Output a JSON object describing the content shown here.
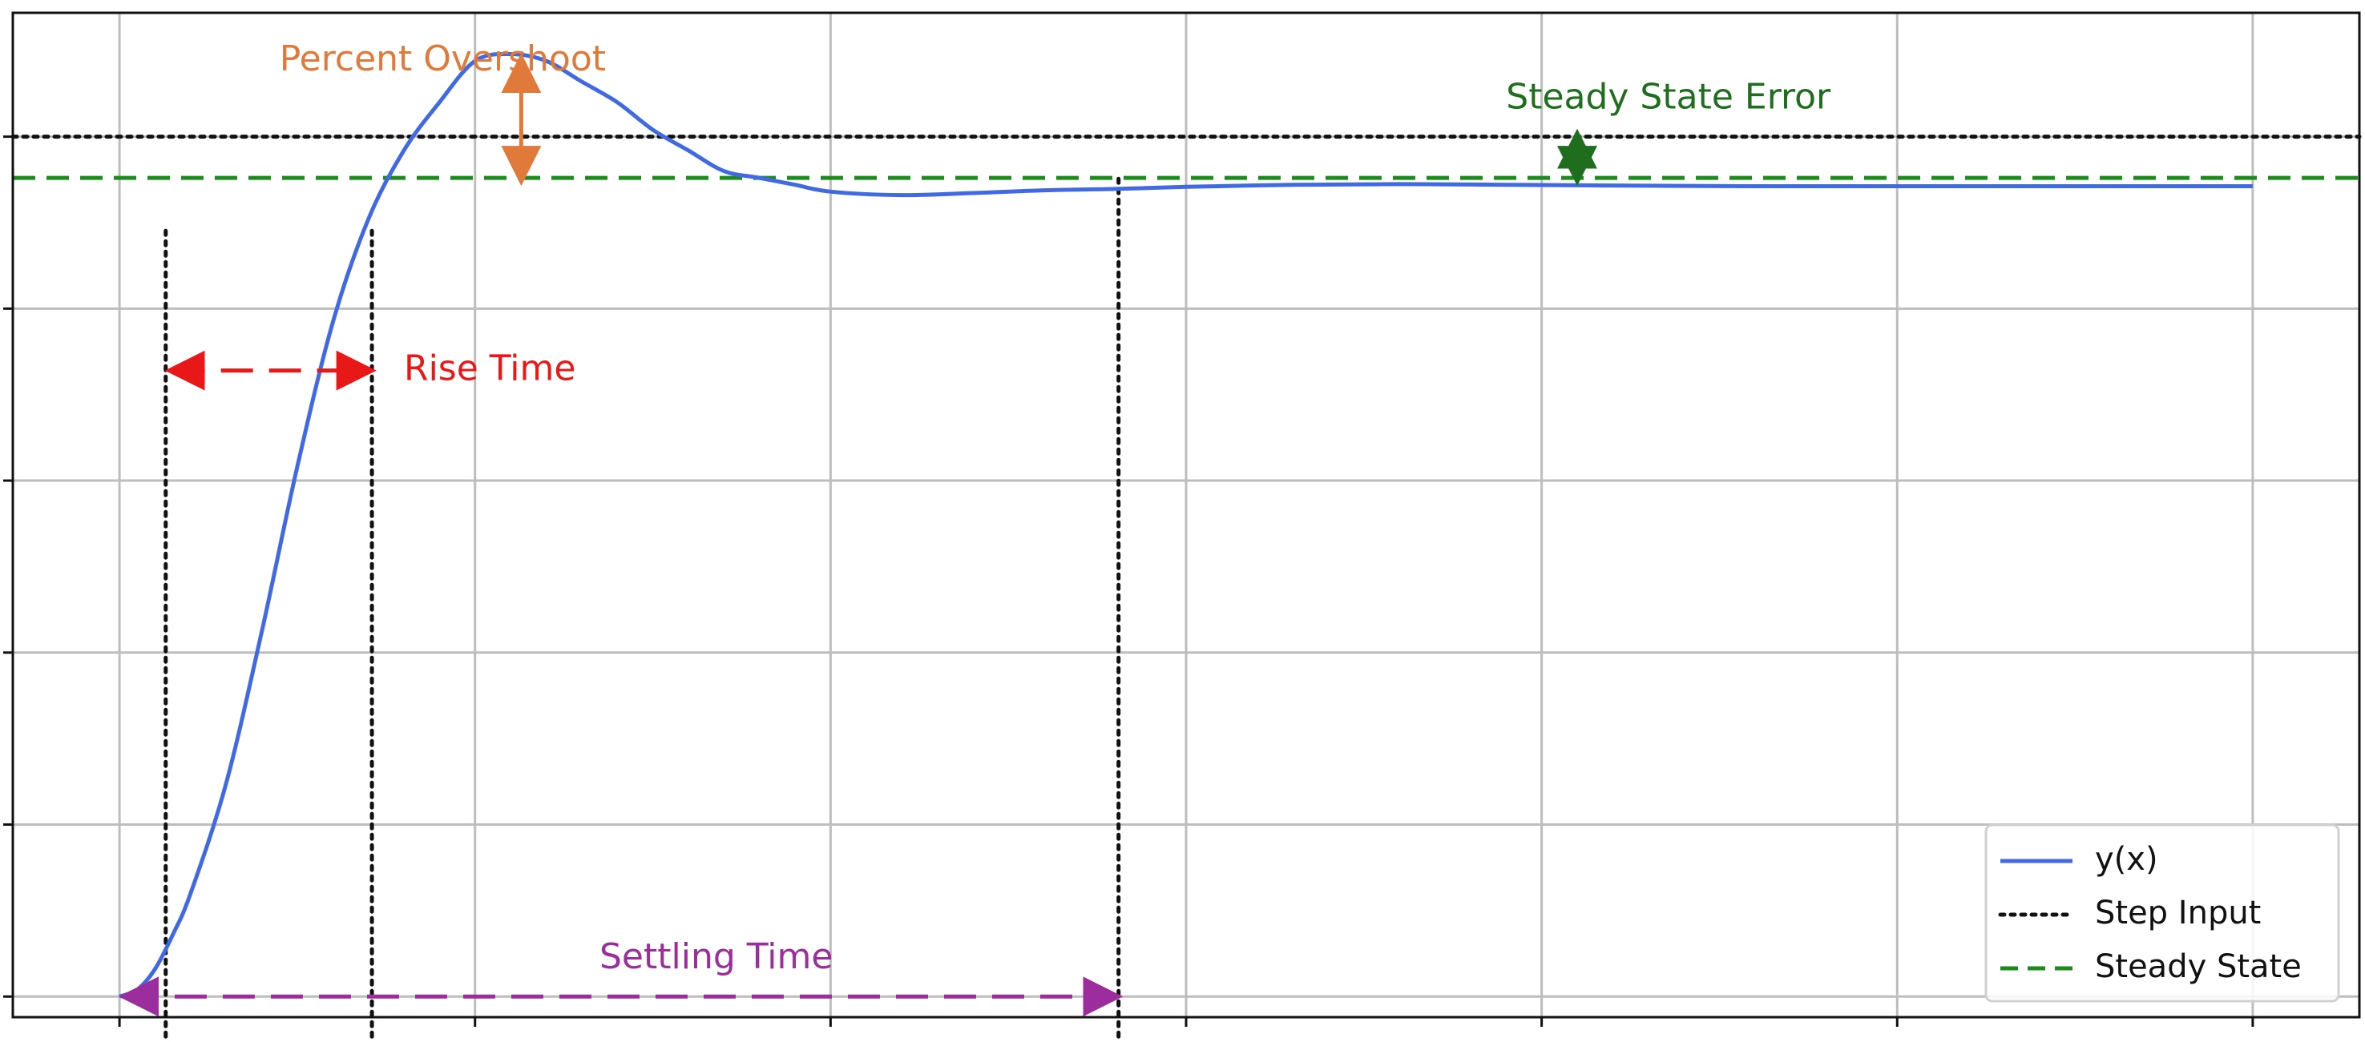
{
  "chart_data": {
    "type": "line",
    "title": "",
    "xlabel": "",
    "ylabel": "",
    "xlim": [
      -0.3,
      6.3
    ],
    "ylim": [
      -0.03,
      1.43
    ],
    "xticks": [
      0,
      1,
      2,
      3,
      4,
      5,
      6
    ],
    "yticks": [
      0,
      0.25,
      0.5,
      0.75,
      1.0,
      1.25
    ],
    "grid": true,
    "legend_position": "bottom-right",
    "series": [
      {
        "name": "y(x)",
        "style": "solid",
        "color": "#4169e1",
        "x": [
          0,
          0.05,
          0.1,
          0.15,
          0.2,
          0.3,
          0.4,
          0.5,
          0.6,
          0.7,
          0.8,
          0.9,
          1.0,
          1.1,
          1.2,
          1.3,
          1.4,
          1.5,
          1.6,
          1.7,
          1.8,
          1.9,
          2.0,
          2.2,
          2.4,
          2.6,
          2.8,
          3.0,
          3.3,
          3.6,
          3.9,
          4.2,
          4.6,
          5.0,
          5.5,
          6.0
        ],
        "y": [
          0.0,
          0.01,
          0.04,
          0.09,
          0.15,
          0.31,
          0.53,
          0.77,
          0.98,
          1.13,
          1.23,
          1.3,
          1.36,
          1.37,
          1.36,
          1.33,
          1.3,
          1.26,
          1.23,
          1.2,
          1.19,
          1.18,
          1.17,
          1.165,
          1.168,
          1.172,
          1.174,
          1.177,
          1.18,
          1.181,
          1.18,
          1.179,
          1.178,
          1.178,
          1.178,
          1.178
        ]
      },
      {
        "name": "Step Input",
        "style": "dotted",
        "color": "#111111",
        "x": [
          -0.3,
          6.3
        ],
        "y": [
          1.25,
          1.25
        ]
      },
      {
        "name": "Steady State",
        "style": "dashed",
        "color": "#1e8a1e",
        "x": [
          -0.3,
          6.3
        ],
        "y": [
          1.19,
          1.19
        ]
      }
    ],
    "markers": [
      {
        "x": 0.13,
        "y0": 0,
        "y1": 1.12
      },
      {
        "x": 0.71,
        "y0": 0,
        "y1": 1.12
      },
      {
        "x": 2.81,
        "y0": 0,
        "y1": 1.19
      }
    ],
    "annotations": [
      {
        "text": "Percent Overshoot",
        "color": "#e07a3a",
        "text_x": 0.45,
        "text_y": 1.36,
        "arrow_x1": 1.13,
        "arrow_y1": 1.36,
        "arrow_x2": 1.13,
        "arrow_y2": 1.19,
        "arrow_style": "solid"
      },
      {
        "text": "Rise Time",
        "color": "#e81818",
        "text_x": 0.8,
        "text_y": 0.91,
        "arrow_x1": 0.15,
        "arrow_y1": 0.91,
        "arrow_x2": 0.7,
        "arrow_y2": 0.91,
        "arrow_style": "dashed"
      },
      {
        "text": "Settling Time",
        "color": "#9c2d9c",
        "text_x": 1.35,
        "text_y": 0.055,
        "arrow_x1": 0.02,
        "arrow_y1": 0.0,
        "arrow_x2": 2.8,
        "arrow_y2": 0.0,
        "arrow_style": "dashed"
      },
      {
        "text": "Steady State Error",
        "color": "#1e6e1e",
        "text_x": 3.9,
        "text_y": 1.305,
        "arrow_x1": 4.1,
        "arrow_y1": 1.25,
        "arrow_x2": 4.1,
        "arrow_y2": 1.19,
        "arrow_style": "solid"
      }
    ]
  }
}
